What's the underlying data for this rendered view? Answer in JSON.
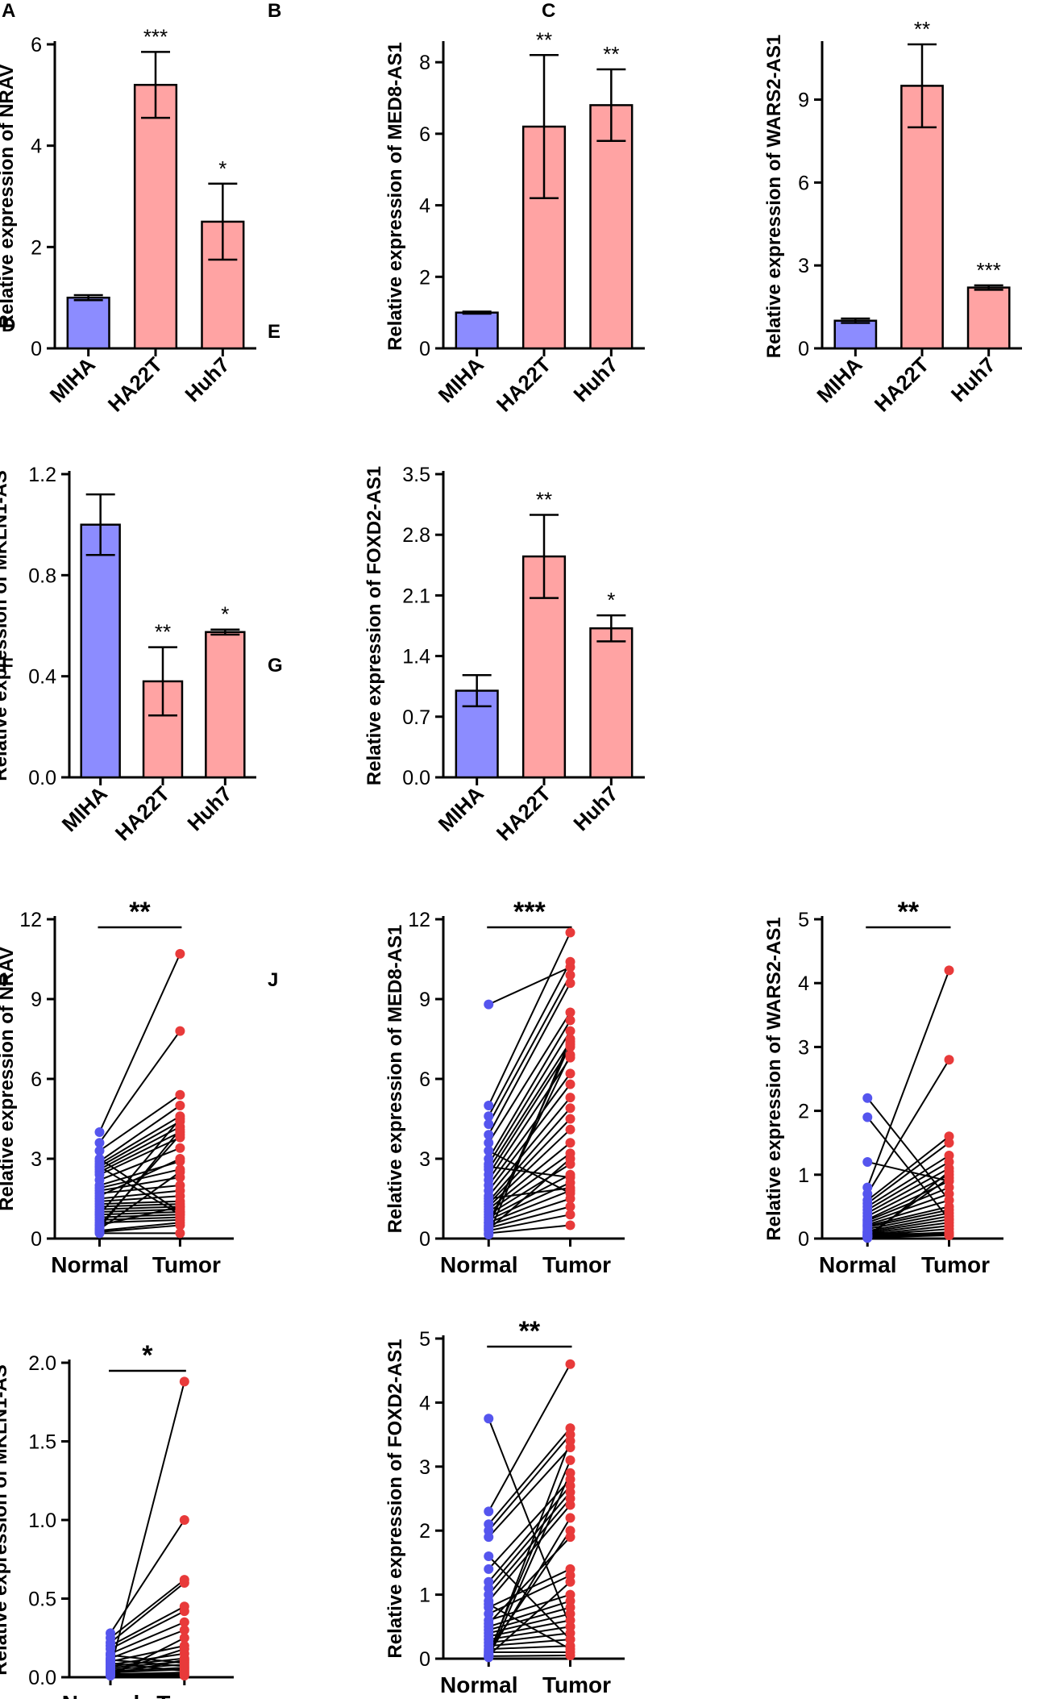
{
  "figure": {
    "colors": {
      "normal": "#8C8CFF",
      "tumor": "#FFA3A3",
      "normal_dot": "#5555EE",
      "tumor_dot": "#E83A3A",
      "axis": "#000000"
    }
  },
  "chart_data": [
    {
      "panel": "A",
      "type": "bar",
      "categories": [
        "MIHA",
        "HA22T",
        "Huh7"
      ],
      "values": [
        1.0,
        5.2,
        2.5
      ],
      "errors": [
        0.05,
        0.65,
        0.75
      ],
      "significance": [
        "",
        "***",
        "*"
      ],
      "ylabel": "Relative expression of NRAV",
      "ylim": [
        0,
        6
      ],
      "yticks": [
        "0",
        "2",
        "4",
        "6"
      ],
      "ytick_values": [
        0,
        2,
        4,
        6
      ]
    },
    {
      "panel": "B",
      "type": "bar",
      "categories": [
        "MIHA",
        "HA22T",
        "Huh7"
      ],
      "values": [
        1.0,
        6.2,
        6.8
      ],
      "errors": [
        0.03,
        2.0,
        1.0
      ],
      "significance": [
        "",
        "**",
        "**"
      ],
      "ylabel": "Relative expression of MED8-AS1",
      "ylim": [
        0,
        8.5
      ],
      "yticks": [
        "0",
        "2",
        "4",
        "6",
        "8"
      ],
      "ytick_values": [
        0,
        2,
        4,
        6,
        8
      ]
    },
    {
      "panel": "C",
      "type": "bar",
      "categories": [
        "MIHA",
        "HA22T",
        "Huh7"
      ],
      "values": [
        1.0,
        9.5,
        2.2
      ],
      "errors": [
        0.08,
        1.5,
        0.08
      ],
      "significance": [
        "",
        "**",
        "***"
      ],
      "ylabel": "Relative expression of WARS2-AS1",
      "ylim": [
        0,
        11
      ],
      "yticks": [
        "0",
        "3",
        "6",
        "9"
      ],
      "ytick_values": [
        0,
        3,
        6,
        9
      ]
    },
    {
      "panel": "D",
      "type": "bar",
      "categories": [
        "MIHA",
        "HA22T",
        "Huh7"
      ],
      "values": [
        1.0,
        0.38,
        0.575
      ],
      "errors": [
        0.12,
        0.135,
        0.01
      ],
      "significance": [
        "",
        "**",
        "*"
      ],
      "ylabel": "Relative expression of MKLN1-AS",
      "ylim": [
        0,
        1.2
      ],
      "yticks": [
        "0.0",
        "0.4",
        "0.8",
        "1.2"
      ],
      "ytick_values": [
        0,
        0.4,
        0.8,
        1.2
      ]
    },
    {
      "panel": "E",
      "type": "bar",
      "categories": [
        "MIHA",
        "HA22T",
        "Huh7"
      ],
      "values": [
        1.0,
        2.55,
        1.72
      ],
      "errors": [
        0.18,
        0.48,
        0.15
      ],
      "significance": [
        "",
        "**",
        "*"
      ],
      "ylabel": "Relative expression of FOXD2-AS1",
      "ylim": [
        0,
        3.5
      ],
      "yticks": [
        "0.0",
        "0.7",
        "1.4",
        "2.1",
        "2.8",
        "3.5"
      ],
      "ytick_values": [
        0,
        0.7,
        1.4,
        2.1,
        2.8,
        3.5
      ]
    },
    {
      "panel": "F",
      "type": "scatter",
      "categories": [
        "Normal",
        "Tumor"
      ],
      "ylabel": "Relative expression of NRAV",
      "ylim": [
        0,
        12
      ],
      "yticks": [
        "0",
        "3",
        "6",
        "9",
        "12"
      ],
      "ytick_values": [
        0,
        3,
        6,
        9,
        12
      ],
      "significance": "**",
      "pairs": [
        [
          4.0,
          10.7
        ],
        [
          3.6,
          7.8
        ],
        [
          3.3,
          5.4
        ],
        [
          2.9,
          5.0
        ],
        [
          2.8,
          4.6
        ],
        [
          2.7,
          4.4
        ],
        [
          2.6,
          4.2
        ],
        [
          2.5,
          4.0
        ],
        [
          2.4,
          3.8
        ],
        [
          2.2,
          3.4
        ],
        [
          2.0,
          2.9
        ],
        [
          1.9,
          2.6
        ],
        [
          1.8,
          2.3
        ],
        [
          1.7,
          2.0
        ],
        [
          1.5,
          1.8
        ],
        [
          1.4,
          1.6
        ],
        [
          1.3,
          1.4
        ],
        [
          1.2,
          1.3
        ],
        [
          1.1,
          1.2
        ],
        [
          1.0,
          1.1
        ],
        [
          0.9,
          1.0
        ],
        [
          0.8,
          0.9
        ],
        [
          0.7,
          0.8
        ],
        [
          0.6,
          0.7
        ],
        [
          0.5,
          3.9
        ],
        [
          0.4,
          4.1
        ],
        [
          0.35,
          2.5
        ],
        [
          0.3,
          0.6
        ],
        [
          0.25,
          0.5
        ],
        [
          0.2,
          0.2
        ],
        [
          3.0,
          1.0
        ],
        [
          2.7,
          0.9
        ],
        [
          0.9,
          4.5
        ],
        [
          1.6,
          3.0
        ],
        [
          0.5,
          1.2
        ]
      ]
    },
    {
      "panel": "G",
      "type": "scatter",
      "categories": [
        "Normal",
        "Tumor"
      ],
      "ylabel": "Relative expression of MED8-AS1",
      "ylim": [
        0,
        12
      ],
      "yticks": [
        "0",
        "3",
        "6",
        "9",
        "12"
      ],
      "ytick_values": [
        0,
        3,
        6,
        9,
        12
      ],
      "significance": "***",
      "pairs": [
        [
          8.8,
          10.2
        ],
        [
          5.0,
          11.5
        ],
        [
          4.6,
          10.4
        ],
        [
          4.3,
          9.9
        ],
        [
          3.9,
          9.6
        ],
        [
          3.6,
          8.5
        ],
        [
          3.0,
          8.2
        ],
        [
          2.8,
          7.8
        ],
        [
          2.6,
          7.4
        ],
        [
          2.4,
          7.2
        ],
        [
          2.2,
          6.8
        ],
        [
          2.0,
          6.2
        ],
        [
          1.8,
          5.8
        ],
        [
          1.6,
          5.3
        ],
        [
          1.4,
          4.9
        ],
        [
          1.3,
          4.5
        ],
        [
          1.2,
          4.1
        ],
        [
          1.1,
          3.6
        ],
        [
          1.0,
          3.2
        ],
        [
          0.9,
          2.8
        ],
        [
          0.8,
          2.4
        ],
        [
          0.7,
          2.1
        ],
        [
          0.6,
          1.8
        ],
        [
          0.5,
          1.5
        ],
        [
          0.4,
          1.2
        ],
        [
          0.3,
          0.9
        ],
        [
          0.2,
          0.5
        ],
        [
          0.15,
          7.5
        ],
        [
          2.7,
          2.3
        ],
        [
          1.5,
          1.9
        ],
        [
          0.6,
          6.9
        ],
        [
          0.35,
          3.0
        ],
        [
          3.3,
          1.7
        ],
        [
          0.45,
          7.3
        ]
      ]
    },
    {
      "panel": "H",
      "type": "scatter",
      "categories": [
        "Normal",
        "Tumor"
      ],
      "ylabel": "Relative expression of WARS2-AS1",
      "ylim": [
        0,
        5
      ],
      "yticks": [
        "0",
        "1",
        "2",
        "3",
        "4",
        "5"
      ],
      "ytick_values": [
        0,
        1,
        2,
        3,
        4,
        5
      ],
      "significance": "**",
      "pairs": [
        [
          2.2,
          0.6
        ],
        [
          1.9,
          0.3
        ],
        [
          1.2,
          0.9
        ],
        [
          0.8,
          4.2
        ],
        [
          0.7,
          2.8
        ],
        [
          0.6,
          1.6
        ],
        [
          0.55,
          1.5
        ],
        [
          0.5,
          1.3
        ],
        [
          0.45,
          1.2
        ],
        [
          0.4,
          1.1
        ],
        [
          0.35,
          1.0
        ],
        [
          0.3,
          0.9
        ],
        [
          0.28,
          0.8
        ],
        [
          0.25,
          0.7
        ],
        [
          0.22,
          0.6
        ],
        [
          0.2,
          0.5
        ],
        [
          0.18,
          0.45
        ],
        [
          0.15,
          0.4
        ],
        [
          0.12,
          0.35
        ],
        [
          0.1,
          0.3
        ],
        [
          0.08,
          0.25
        ],
        [
          0.06,
          0.2
        ],
        [
          0.05,
          0.15
        ],
        [
          0.04,
          0.1
        ],
        [
          0.03,
          0.08
        ],
        [
          0.02,
          0.06
        ],
        [
          0.02,
          0.05
        ],
        [
          0.01,
          1.05
        ],
        [
          0.05,
          0.95
        ],
        [
          0.1,
          0.05
        ]
      ]
    },
    {
      "panel": "I",
      "type": "scatter",
      "categories": [
        "Normal",
        "Tumor"
      ],
      "ylabel": "Relative expression of MKLN1-AS",
      "ylim": [
        0,
        2.0
      ],
      "yticks": [
        "0.0",
        "0.5",
        "1.0",
        "1.5",
        "2.0"
      ],
      "ytick_values": [
        0,
        0.5,
        1.0,
        1.5,
        2.0
      ],
      "significance": "*",
      "pairs": [
        [
          0.05,
          1.88
        ],
        [
          0.28,
          1.0
        ],
        [
          0.25,
          0.62
        ],
        [
          0.22,
          0.6
        ],
        [
          0.2,
          0.45
        ],
        [
          0.18,
          0.42
        ],
        [
          0.15,
          0.35
        ],
        [
          0.12,
          0.3
        ],
        [
          0.1,
          0.2
        ],
        [
          0.08,
          0.15
        ],
        [
          0.07,
          0.12
        ],
        [
          0.06,
          0.1
        ],
        [
          0.05,
          0.08
        ],
        [
          0.04,
          0.06
        ],
        [
          0.03,
          0.05
        ],
        [
          0.02,
          0.03
        ],
        [
          0.02,
          0.02
        ],
        [
          0.01,
          0.25
        ],
        [
          0.03,
          0.18
        ],
        [
          0.09,
          0.04
        ],
        [
          0.11,
          0.07
        ],
        [
          0.14,
          0.09
        ],
        [
          0.01,
          0.01
        ],
        [
          0.02,
          0.11
        ]
      ]
    },
    {
      "panel": "J",
      "type": "scatter",
      "categories": [
        "Normal",
        "Tumor"
      ],
      "ylabel": "Relative expression of FOXD2-AS1",
      "ylim": [
        0,
        5
      ],
      "yticks": [
        "0",
        "1",
        "2",
        "3",
        "4",
        "5"
      ],
      "ytick_values": [
        0,
        1,
        2,
        3,
        4,
        5
      ],
      "significance": "**",
      "pairs": [
        [
          3.75,
          0.5
        ],
        [
          2.3,
          4.6
        ],
        [
          2.1,
          3.6
        ],
        [
          2.0,
          3.5
        ],
        [
          1.9,
          3.3
        ],
        [
          1.4,
          2.8
        ],
        [
          1.2,
          2.7
        ],
        [
          1.1,
          2.6
        ],
        [
          1.0,
          2.5
        ],
        [
          0.9,
          2.4
        ],
        [
          0.8,
          1.4
        ],
        [
          0.7,
          1.3
        ],
        [
          0.6,
          1.0
        ],
        [
          0.5,
          0.9
        ],
        [
          0.45,
          0.8
        ],
        [
          0.4,
          0.7
        ],
        [
          0.35,
          0.6
        ],
        [
          0.3,
          0.5
        ],
        [
          0.25,
          0.4
        ],
        [
          0.2,
          0.3
        ],
        [
          0.15,
          0.2
        ],
        [
          0.1,
          0.1
        ],
        [
          0.08,
          3.1
        ],
        [
          0.06,
          2.2
        ],
        [
          0.05,
          1.2
        ],
        [
          0.04,
          0.05
        ],
        [
          0.03,
          3.4
        ],
        [
          0.02,
          2.9
        ],
        [
          1.6,
          0.3
        ],
        [
          0.85,
          0.15
        ],
        [
          0.55,
          1.9
        ],
        [
          0.12,
          2.0
        ]
      ]
    }
  ]
}
